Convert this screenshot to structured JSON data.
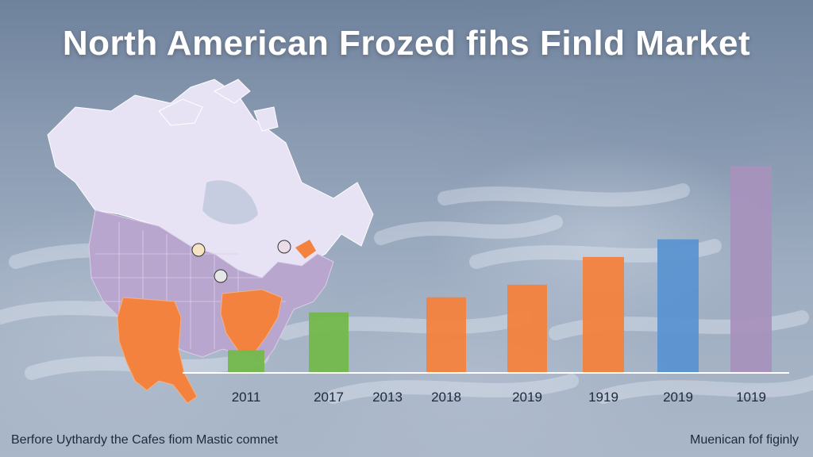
{
  "title": "North American Frozed fihs Finld Market",
  "footer": {
    "left": "Berfore Uythardy the Cafes fiom Mastic comnet",
    "right": "Muenican fof figinly"
  },
  "map": {
    "colors": {
      "land": "#e7e3f5",
      "states": "#b9a6cf",
      "alaska": "#f3823e",
      "southeast": "#f3823e"
    }
  },
  "chart_data": {
    "type": "bar",
    "categories": [
      "2011",
      "2017",
      "2013",
      "2018",
      "2019",
      "1919",
      "2019",
      "1019"
    ],
    "values": [
      0.9,
      2.4,
      null,
      3.0,
      3.5,
      4.6,
      5.3,
      8.2
    ],
    "colors": [
      "#73b84c",
      "#73b84c",
      null,
      "#f3823e",
      "#f3823e",
      "#f3823e",
      "#5b93d1",
      "#a892bd"
    ],
    "ylim": [
      0,
      8.5
    ],
    "grid": false,
    "title": ""
  }
}
